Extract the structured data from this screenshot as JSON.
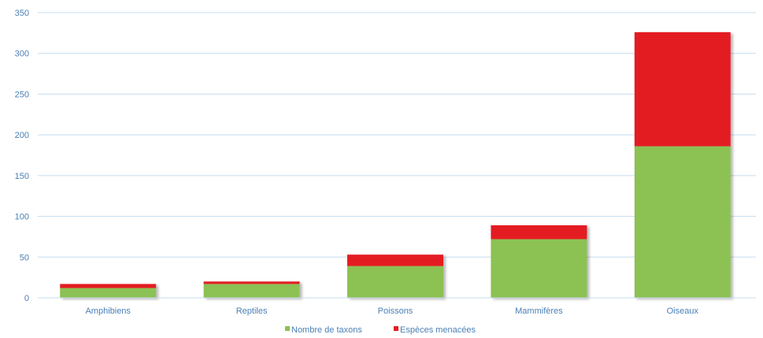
{
  "chart_data": {
    "type": "bar",
    "stacked": true,
    "categories": [
      "Amphibiens",
      "Reptiles",
      "Poissons",
      "Mammifères",
      "Oiseaux"
    ],
    "series": [
      {
        "name": "Nombre de taxons",
        "color": "#8cc152",
        "values": [
          12,
          17,
          39,
          72,
          186
        ]
      },
      {
        "name": "Espèces menacées",
        "color": "#e31e24",
        "values": [
          5,
          3,
          14,
          17,
          140
        ]
      }
    ],
    "yticks": [
      0,
      50,
      100,
      150,
      200,
      250,
      300,
      350
    ],
    "ylim": [
      0,
      350
    ],
    "grid": true,
    "legend_position": "bottom",
    "axis_color": "#4a7fb5",
    "grid_color": "#c5dcef"
  }
}
